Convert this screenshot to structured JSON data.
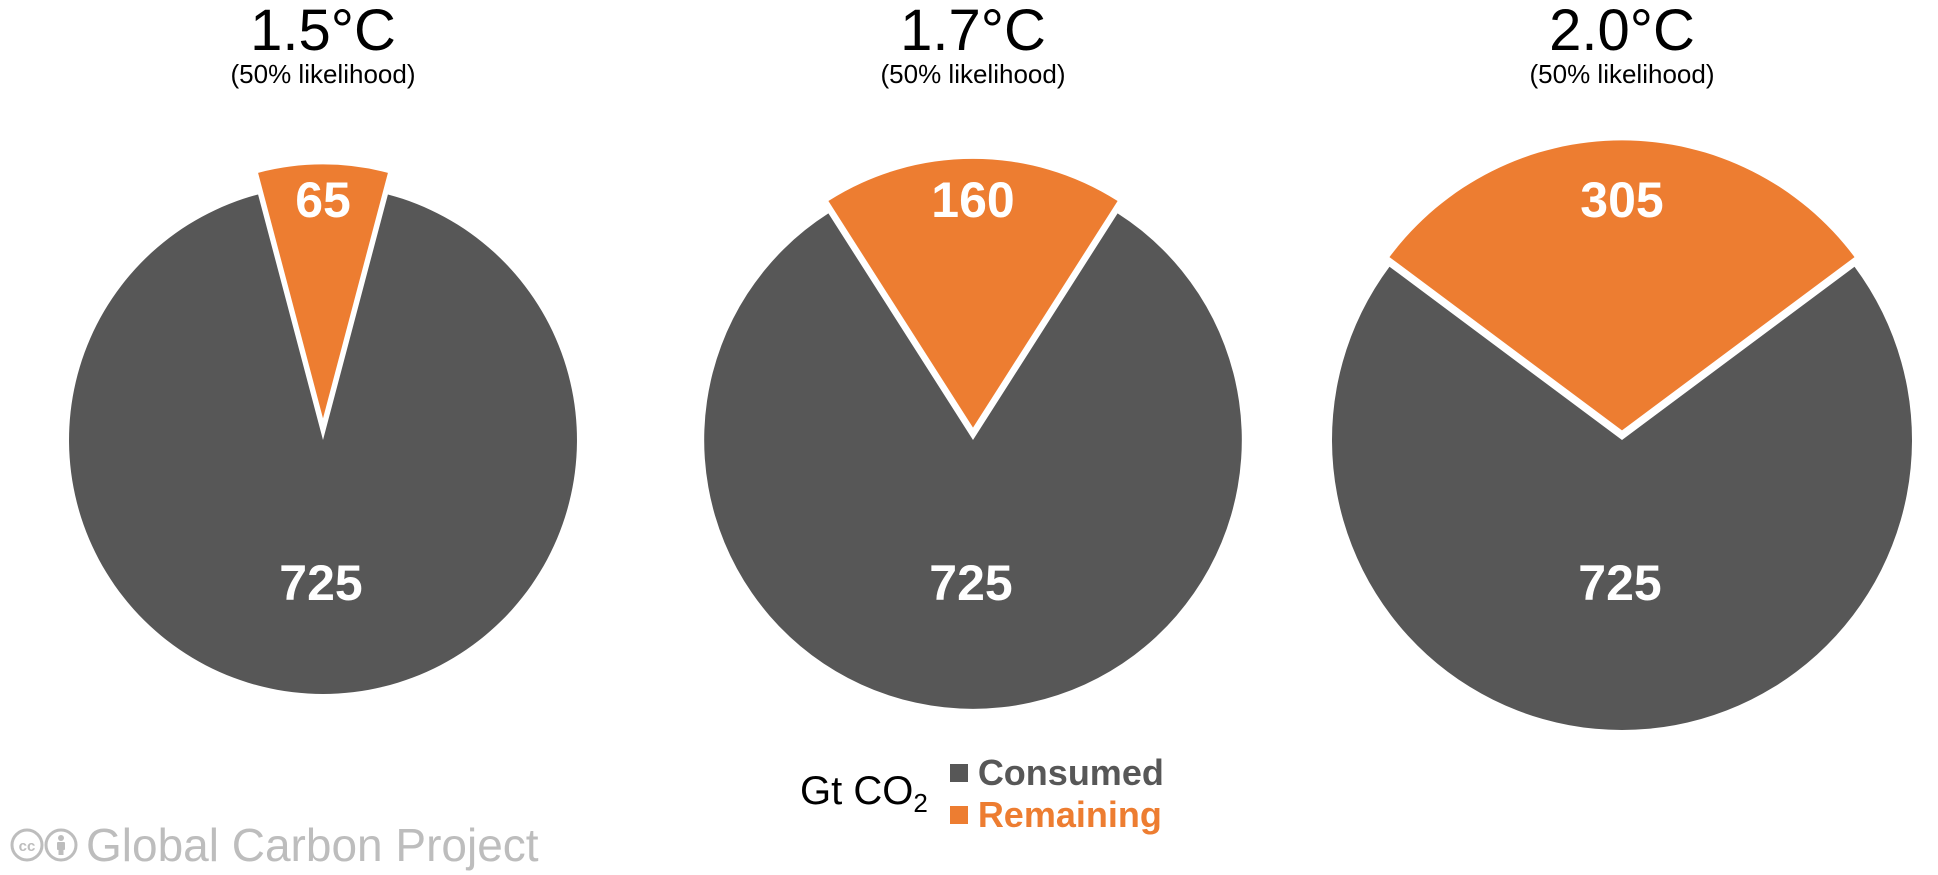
{
  "colors": {
    "consumed": "#575757",
    "remaining": "#ed7d31",
    "background": "#ffffff",
    "credit": "#bdbdbd"
  },
  "chart_data": [
    {
      "type": "pie",
      "title": "1.5°C",
      "subtitle": "(50% likelihood)",
      "slices": [
        {
          "name": "Consumed",
          "value": 725,
          "label": "725"
        },
        {
          "name": "Remaining",
          "value": 65,
          "label": "65"
        }
      ]
    },
    {
      "type": "pie",
      "title": "1.7°C",
      "subtitle": "(50% likelihood)",
      "slices": [
        {
          "name": "Consumed",
          "value": 725,
          "label": "725"
        },
        {
          "name": "Remaining",
          "value": 160,
          "label": "160"
        }
      ]
    },
    {
      "type": "pie",
      "title": "2.0°C",
      "subtitle": "(50% likelihood)",
      "slices": [
        {
          "name": "Consumed",
          "value": 725,
          "label": "725"
        },
        {
          "name": "Remaining",
          "value": 305,
          "label": "305"
        }
      ]
    }
  ],
  "legend": {
    "unit_prefix": "Gt CO",
    "unit_subscript": "2",
    "items": [
      {
        "label": "Consumed",
        "color": "#575757"
      },
      {
        "label": "Remaining",
        "color": "#ed7d31"
      }
    ]
  },
  "credit": {
    "text": "Global Carbon Project",
    "badge_icons": [
      "cc-icon",
      "by-attribution-icon"
    ]
  }
}
